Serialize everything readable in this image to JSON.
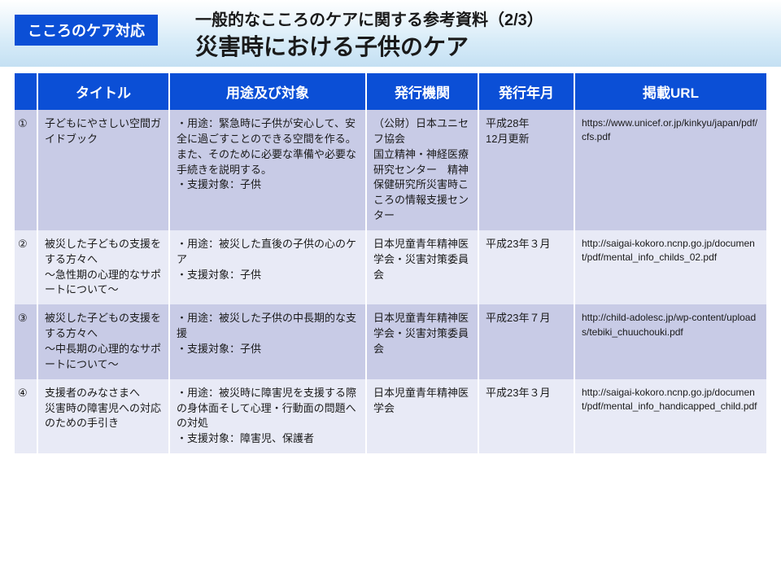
{
  "header": {
    "badge": "こころのケア対応",
    "subtitle": "一般的なこころのケアに関する参考資料（2/3）",
    "title": "災害時における子供のケア"
  },
  "columns": {
    "num": "",
    "title": "タイトル",
    "use": "用途及び対象",
    "org": "発行機関",
    "date": "発行年月",
    "url": "掲載URL"
  },
  "rows": [
    {
      "num": "①",
      "title": "子どもにやさしい空間ガイドブック",
      "use": "・用途：緊急時に子供が安心して、安全に過ごすことのできる空間を作る。また、そのために必要な準備や必要な手続きを説明する。\n・支援対象：子供",
      "org": "（公財）日本ユニセフ協会\n国立精神・神経医療研究センター　精神保健研究所災害時こころの情報支援センター",
      "date": "平成28年\n12月更新",
      "url": "https://www.unicef.or.jp/kinkyu/japan/pdf/cfs.pdf"
    },
    {
      "num": "②",
      "title": "被災した子どもの支援をする方々へ\n～急性期の心理的なサポートについて～",
      "use": "・用途：被災した直後の子供の心のケア\n・支援対象：子供",
      "org": "日本児童青年精神医学会・災害対策委員会",
      "date": "平成23年３月",
      "url": "http://saigai-kokoro.ncnp.go.jp/document/pdf/mental_info_childs_02.pdf"
    },
    {
      "num": "③",
      "title": "被災した子どもの支援をする方々へ\n～中長期の心理的なサポートについて～",
      "use": "・用途：被災した子供の中長期的な支援\n・支援対象：子供",
      "org": "日本児童青年精神医学会・災害対策委員会",
      "date": "平成23年７月",
      "url": "http://child-adolesc.jp/wp-content/uploads/tebiki_chuuchouki.pdf"
    },
    {
      "num": "④",
      "title": "支援者のみなさまへ\n災害時の障害児への対応のための手引き",
      "use": "・用途：被災時に障害児を支援する際の身体面そして心理・行動面の問題への対処\n・支援対象：障害児、保護者",
      "org": "日本児童青年精神医学会",
      "date": "平成23年３月",
      "url": "http://saigai-kokoro.ncnp.go.jp/document/pdf/mental_info_handicapped_child.pdf"
    }
  ],
  "style": {
    "header_gradient_top": "#ffffff",
    "header_gradient_bottom": "#c4e0f3",
    "badge_bg": "#0b4fd6",
    "th_bg": "#0b4fd6",
    "row_odd_bg": "#c8cbe6",
    "row_even_bg": "#e8eaf6",
    "text_color": "#1a1a1a",
    "title_fontsize_pt": 21,
    "subtitle_fontsize_pt": 15,
    "th_fontsize_pt": 13,
    "td_fontsize_pt": 10
  }
}
